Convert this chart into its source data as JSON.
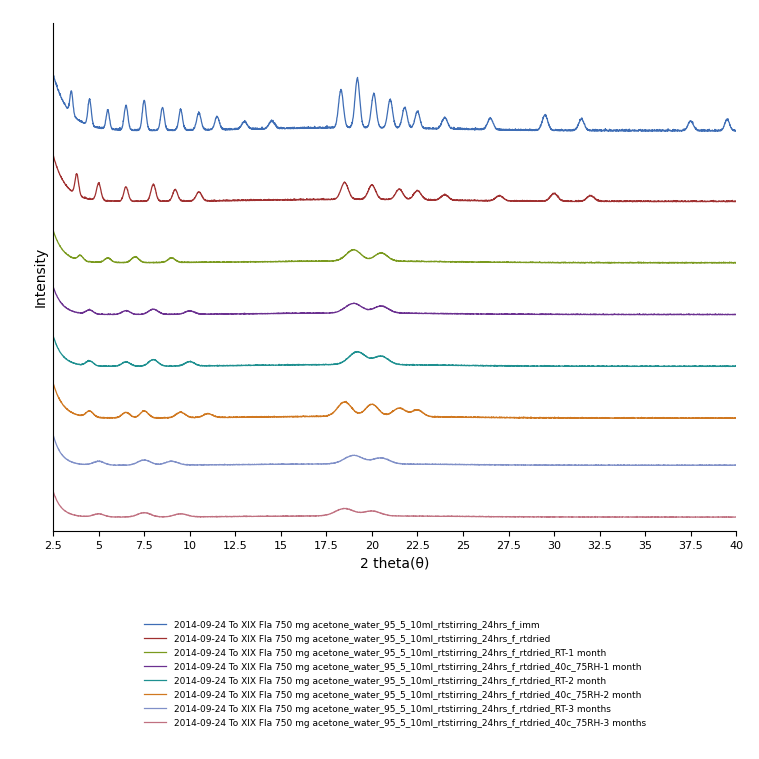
{
  "title": "",
  "xlabel": "2 theta(θ)",
  "ylabel": "Intensity",
  "xlim": [
    2.5,
    40
  ],
  "xticks": [
    2.5,
    5,
    7.5,
    10,
    12.5,
    15,
    17.5,
    20,
    22.5,
    25,
    27.5,
    30,
    32.5,
    35,
    37.5,
    40
  ],
  "xtick_labels": [
    "2.5",
    "5",
    "7.5",
    "10",
    "12.5",
    "15",
    "17.5",
    "20",
    "22.5",
    "25",
    "27.5",
    "30",
    "32.5",
    "35",
    "37.5",
    "40"
  ],
  "colors": [
    "#3E6DB5",
    "#A03030",
    "#7A9A1E",
    "#6B3090",
    "#1E9090",
    "#D07820",
    "#8090C8",
    "#C07080"
  ],
  "offsets": [
    8.5,
    7.0,
    5.7,
    4.6,
    3.5,
    2.4,
    1.4,
    0.3
  ],
  "scales": [
    1.2,
    1.0,
    0.7,
    0.6,
    0.65,
    0.75,
    0.65,
    0.55
  ],
  "legend_labels": [
    "2014-09-24 To XIX Fla 750 mg acetone_water_95_5_10ml_rtstirring_24hrs_f_imm",
    "2014-09-24 To XIX Fla 750 mg acetone_water_95_5_10ml_rtstirring_24hrs_f_rtdried",
    "2014-09-24 To XIX Fla 750 mg acetone_water_95_5_10ml_rtstirring_24hrs_f_rtdried_RT-1 month",
    "2014-09-24 To XIX Fla 750 mg acetone_water_95_5_10ml_rtstirring_24hrs_f_rtdried_40c_75RH-1 month",
    "2014-09-24 To XIX Fla 750 mg acetone_water_95_5_10ml_rtstirring_24hrs_f_rtdried_RT-2 month",
    "2014-09-24 To XIX Fla 750 mg acetone_water_95_5_10ml_rtstirring_24hrs_f_rtdried_40c_75RH-2 month",
    "2014-09-24 To XIX Fla 750 mg acetone_water_95_5_10ml_rtstirring_24hrs_f_rtdried_RT-3 months",
    "2014-09-24 To XIX Fla 750 mg acetone_water_95_5_10ml_rtstirring_24hrs_f_rtdried_40c_75RH-3 months"
  ],
  "background_color": "#FFFFFF",
  "figsize": [
    7.59,
    7.59
  ],
  "dpi": 100
}
